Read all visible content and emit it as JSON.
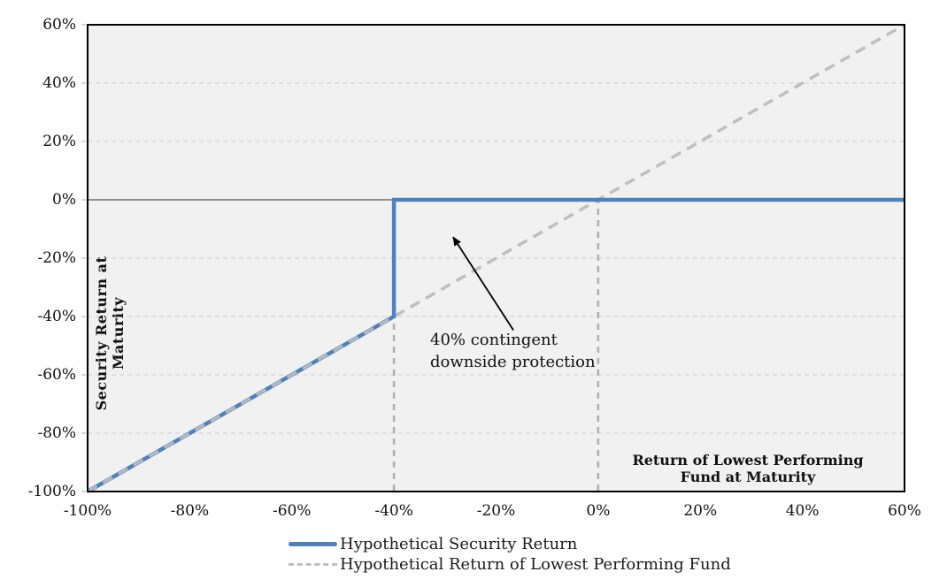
{
  "chart_data": {
    "type": "line",
    "title": "",
    "ylabel": "Security Return at Maturity",
    "inplot_xlabel": {
      "line1": "Return of Lowest Performing",
      "line2": "Fund at Maturity"
    },
    "xlim": [
      -100,
      60
    ],
    "ylim": [
      -100,
      60
    ],
    "grid": "horizontal-dashed",
    "legend_position": "bottom",
    "x_ticks": [
      {
        "value": -100,
        "label": "-100%"
      },
      {
        "value": -80,
        "label": "-80%"
      },
      {
        "value": -60,
        "label": "-60%"
      },
      {
        "value": -40,
        "label": "-40%"
      },
      {
        "value": -20,
        "label": "-20%"
      },
      {
        "value": 0,
        "label": "0%"
      },
      {
        "value": 20,
        "label": "20%"
      },
      {
        "value": 40,
        "label": "40%"
      },
      {
        "value": 60,
        "label": "60%"
      }
    ],
    "y_ticks": [
      {
        "value": 60,
        "label": "60%"
      },
      {
        "value": 40,
        "label": "40%"
      },
      {
        "value": 20,
        "label": "20%"
      },
      {
        "value": 0,
        "label": "0%"
      },
      {
        "value": -20,
        "label": "-20%"
      },
      {
        "value": -40,
        "label": "-40%"
      },
      {
        "value": -60,
        "label": "-60%"
      },
      {
        "value": -80,
        "label": "-80%"
      },
      {
        "value": -100,
        "label": "-100%"
      }
    ],
    "series": [
      {
        "name": "Hypothetical Security Return",
        "style": "solid",
        "color": "#4F81BD",
        "width": 4.5,
        "points": [
          [
            -100,
            -100
          ],
          [
            -40,
            -40
          ],
          [
            -40,
            0
          ],
          [
            60,
            0
          ]
        ]
      },
      {
        "name": "Hypothetical Return of Lowest Performing Fund",
        "style": "dashed",
        "color": "#BFBFBF",
        "width": 3.5,
        "points": [
          [
            -100,
            -100
          ],
          [
            60,
            60
          ]
        ]
      }
    ],
    "coincident_segment": [
      [
        -100,
        -100
      ],
      [
        -40,
        -40
      ]
    ],
    "guides": [
      {
        "x": -40,
        "from": -100,
        "to": -40
      },
      {
        "x": 0,
        "from": -100,
        "to": 0
      }
    ],
    "annotation": {
      "line1": "40% contingent",
      "line2": "downside protection",
      "arrow_from": [
        -16.6,
        -44.7
      ],
      "arrow_to": [
        -28.4,
        -12.8
      ]
    },
    "legend": [
      {
        "label": "Hypothetical Security Return",
        "style": "solid",
        "color": "#4F81BD"
      },
      {
        "label": "Hypothetical Return of Lowest Performing Fund",
        "style": "dashed",
        "color": "#BFBFBF"
      }
    ],
    "colors": {
      "plot_bg": "#F1F1F1",
      "grid": "#D9D9D9",
      "zero_line": "#808080",
      "border": "#000000",
      "guide": "#B0B0B0",
      "tick": "#C9C9C9",
      "arrow": "#000000"
    }
  }
}
